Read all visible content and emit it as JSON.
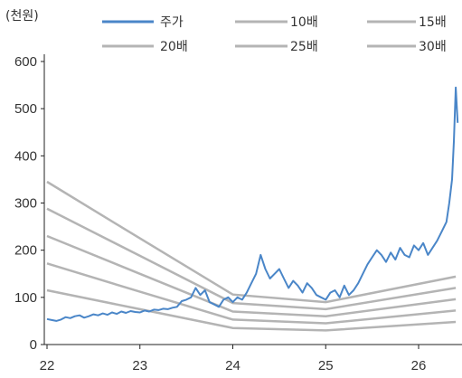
{
  "chart_data": {
    "type": "line",
    "unit_label": "(천원)",
    "y_ticks": [
      "0",
      "100",
      "200",
      "300",
      "400",
      "500",
      "600"
    ],
    "ylim": [
      0,
      600
    ],
    "x_ticks": [
      "22",
      "23",
      "24",
      "25",
      "26"
    ],
    "xlim": [
      22.0,
      26.45
    ],
    "grid": false,
    "legend_position": "top",
    "colors": {
      "price": "#4a86c8",
      "band": "#b4b4b4",
      "axis": "#222222"
    },
    "price_series": {
      "name": "주가",
      "x": [
        22.0,
        22.05,
        22.1,
        22.15,
        22.2,
        22.25,
        22.3,
        22.35,
        22.4,
        22.45,
        22.5,
        22.55,
        22.6,
        22.65,
        22.7,
        22.75,
        22.8,
        22.85,
        22.9,
        22.95,
        23.0,
        23.05,
        23.1,
        23.15,
        23.2,
        23.25,
        23.3,
        23.35,
        23.4,
        23.45,
        23.5,
        23.55,
        23.6,
        23.65,
        23.7,
        23.75,
        23.8,
        23.85,
        23.9,
        23.95,
        24.0,
        24.05,
        24.1,
        24.15,
        24.2,
        24.25,
        24.3,
        24.35,
        24.4,
        24.45,
        24.5,
        24.55,
        24.6,
        24.65,
        24.7,
        24.75,
        24.8,
        24.85,
        24.9,
        24.95,
        25.0,
        25.05,
        25.1,
        25.15,
        25.2,
        25.25,
        25.3,
        25.35,
        25.4,
        25.45,
        25.5,
        25.55,
        25.6,
        25.65,
        25.7,
        25.75,
        25.8,
        25.85,
        25.9,
        25.95,
        26.0,
        26.05,
        26.1,
        26.15,
        26.2,
        26.25,
        26.3,
        26.33,
        26.36,
        26.38,
        26.4,
        26.42
      ],
      "values": [
        54,
        52,
        50,
        53,
        58,
        56,
        60,
        62,
        57,
        60,
        64,
        62,
        66,
        63,
        68,
        65,
        70,
        67,
        71,
        69,
        68,
        72,
        70,
        74,
        73,
        76,
        75,
        78,
        80,
        92,
        95,
        100,
        120,
        105,
        115,
        90,
        85,
        80,
        95,
        100,
        90,
        100,
        95,
        110,
        130,
        150,
        190,
        160,
        140,
        150,
        160,
        140,
        120,
        135,
        125,
        110,
        130,
        120,
        105,
        100,
        95,
        110,
        115,
        100,
        125,
        105,
        115,
        130,
        150,
        170,
        185,
        200,
        190,
        175,
        195,
        180,
        205,
        190,
        185,
        210,
        200,
        215,
        190,
        205,
        220,
        240,
        260,
        300,
        350,
        430,
        545,
        470
      ]
    },
    "band_series": [
      {
        "name": "10배",
        "x": [
          22.0,
          23.0,
          24.0,
          25.0,
          26.4
        ],
        "values": [
          115,
          75,
          35,
          30,
          48
        ]
      },
      {
        "name": "15배",
        "x": [
          22.0,
          23.0,
          24.0,
          25.0,
          26.4
        ],
        "values": [
          172,
          112,
          53,
          45,
          72
        ]
      },
      {
        "name": "20배",
        "x": [
          22.0,
          23.0,
          24.0,
          25.0,
          26.4
        ],
        "values": [
          230,
          150,
          70,
          60,
          96
        ]
      },
      {
        "name": "25배",
        "x": [
          22.0,
          23.0,
          24.0,
          25.0,
          26.4
        ],
        "values": [
          288,
          188,
          88,
          75,
          120
        ]
      },
      {
        "name": "30배",
        "x": [
          22.0,
          23.0,
          24.0,
          25.0,
          26.4
        ],
        "values": [
          345,
          225,
          106,
          90,
          144
        ]
      }
    ]
  }
}
